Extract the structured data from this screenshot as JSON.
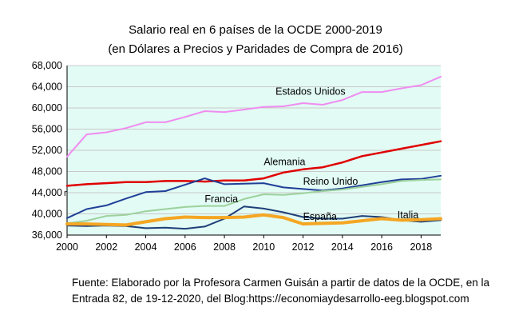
{
  "title_line1": "Salario real en 6 países de la OCDE 2000-2019",
  "title_line2": "(en Dólares a Precios y Paridades de Compra de 2016)",
  "source_line1": "Fuente: Elaborado por la Profesora Carmen Guisán a partir de datos de la OCDE, en la",
  "source_line2": "Entrada 82, de 19-12-2020, del Blog:https://economiaydesarrollo-eeg.blogspot.com",
  "colors": {
    "plot_background": "#e2fbf4",
    "estados_unidos": "#f08cf0",
    "alemania": "#e00000",
    "reino_unido": "#1f3f98",
    "francia": "#9cd19c",
    "espana": "#1f3f78",
    "italia": "#f5a623"
  },
  "chart_data": {
    "type": "line",
    "title": "Salario real en 6 países de la OCDE 2000-2019",
    "subtitle": "(en Dólares a Precios y Paridades de Compra de 2016)",
    "xlabel": "",
    "ylabel": "",
    "x": [
      2000,
      2001,
      2002,
      2003,
      2004,
      2005,
      2006,
      2007,
      2008,
      2009,
      2010,
      2011,
      2012,
      2013,
      2014,
      2015,
      2016,
      2017,
      2018,
      2019
    ],
    "xlim": [
      2000,
      2019
    ],
    "ylim": [
      36000,
      68000
    ],
    "x_ticks": [
      "2000",
      "2002",
      "2004",
      "2006",
      "2008",
      "2010",
      "2012",
      "2014",
      "2016",
      "2018"
    ],
    "y_ticks": [
      "36,000",
      "40,000",
      "44,000",
      "48,000",
      "52,000",
      "56,000",
      "60,000",
      "64,000",
      "68,000"
    ],
    "series": [
      {
        "name": "Estados Unidos",
        "color_key": "estados_unidos",
        "width": 2,
        "values": [
          50800,
          55000,
          55400,
          56200,
          57300,
          57300,
          58300,
          59400,
          59200,
          59700,
          60200,
          60300,
          60900,
          60600,
          61500,
          63000,
          63000,
          63700,
          64300,
          65900
        ]
      },
      {
        "name": "Alemania",
        "color_key": "alemania",
        "width": 2.5,
        "values": [
          45300,
          45600,
          45800,
          46000,
          46000,
          46200,
          46200,
          46100,
          46300,
          46300,
          46700,
          47800,
          48400,
          48800,
          49700,
          50900,
          51600,
          52300,
          53000,
          53700
        ]
      },
      {
        "name": "Reino Unido",
        "color_key": "reino_unido",
        "width": 2,
        "values": [
          39200,
          40900,
          41600,
          42900,
          44100,
          44300,
          45500,
          46700,
          45600,
          45700,
          45800,
          45000,
          44700,
          44400,
          44800,
          45400,
          46000,
          46500,
          46600,
          47200
        ]
      },
      {
        "name": "Francia",
        "color_key": "francia",
        "width": 2,
        "values": [
          38200,
          38700,
          39600,
          39800,
          40500,
          40900,
          41300,
          41500,
          41500,
          42800,
          43700,
          43600,
          43900,
          44300,
          44600,
          45100,
          45600,
          46200,
          46400,
          46500
        ]
      },
      {
        "name": "España",
        "color_key": "espana",
        "width": 2,
        "values": [
          37800,
          37700,
          37800,
          37700,
          37300,
          37400,
          37200,
          37600,
          39100,
          41400,
          41000,
          40300,
          39400,
          39100,
          39100,
          39600,
          39400,
          38800,
          38500,
          38800
        ]
      },
      {
        "name": "Italia",
        "color_key": "italia",
        "width": 4,
        "values": [
          38100,
          38100,
          38000,
          37900,
          38500,
          39100,
          39400,
          39300,
          39300,
          39400,
          39800,
          39300,
          38100,
          38200,
          38300,
          38700,
          39100,
          38800,
          38900,
          39100
        ]
      }
    ],
    "labels": [
      {
        "text": "Estados Unidos",
        "series": "Estados Unidos",
        "at_x": 2010.6,
        "at_y": 62500
      },
      {
        "text": "Alemania",
        "series": "Alemania",
        "at_x": 2010.0,
        "at_y": 49200
      },
      {
        "text": "Reino Unido",
        "series": "Reino Unido",
        "at_x": 2012.0,
        "at_y": 45500
      },
      {
        "text": "Francia",
        "series": "Francia",
        "at_x": 2007.0,
        "at_y": 42200
      },
      {
        "text": "España",
        "series": "España",
        "at_x": 2012.0,
        "at_y": 38900
      },
      {
        "text": "Italia",
        "series": "Italia",
        "at_x": 2016.8,
        "at_y": 39200
      }
    ],
    "stray_mark": "r",
    "grid": "horizontal"
  }
}
